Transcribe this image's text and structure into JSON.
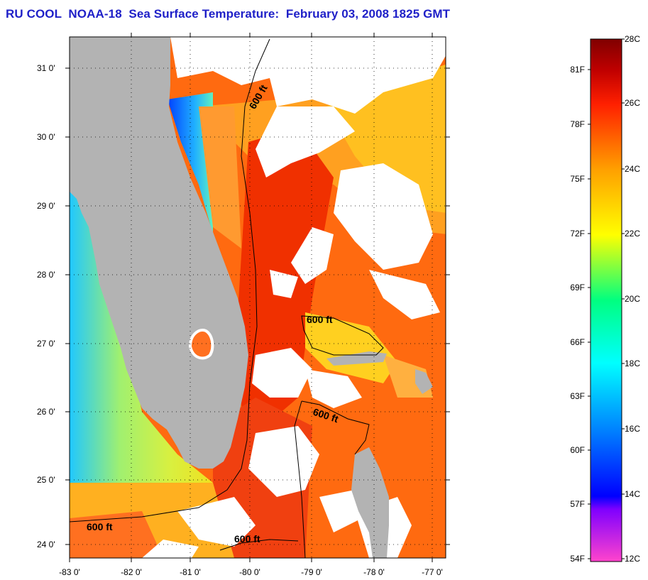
{
  "title": "RU COOL  NOAA-18  Sea Surface Temperature:  February 03, 2008 1825 GMT",
  "map": {
    "lat_labels": [
      "31 0'",
      "30 0'",
      "29 0'",
      "28 0'",
      "27 0'",
      "26 0'",
      "25 0'",
      "24 0'"
    ],
    "lon_labels": [
      "-83 0'",
      "-82 0'",
      "-81 0'",
      "-80 0'",
      "-79 0'",
      "-78 0'",
      "-77 0'"
    ],
    "isobath_labels": [
      "600 ft",
      "600 ft",
      "600 ft",
      "600 ft",
      "600 ft"
    ],
    "colors": {
      "land": "#b3b3b3",
      "cloud": "#ffffff",
      "warm_water": "#ff5a00",
      "gulf_stream": "#f03000",
      "shelf_green": "#b8f040",
      "cold_coastal": "#1060ff"
    }
  },
  "colorbar": {
    "fahrenheit_labels": [
      "81F",
      "78F",
      "75F",
      "72F",
      "69F",
      "66F",
      "63F",
      "60F",
      "57F",
      "54F"
    ],
    "celsius_labels": [
      "28C",
      "26C",
      "24C",
      "22C",
      "20C",
      "18C",
      "16C",
      "14C",
      "12C"
    ],
    "range_celsius": [
      12,
      28
    ],
    "stops": [
      "#ff44cc",
      "#7f00ff",
      "#0000ff",
      "#0080ff",
      "#00ffff",
      "#00ff80",
      "#ffff00",
      "#ffa000",
      "#ff2000",
      "#c00000",
      "#800000"
    ]
  }
}
